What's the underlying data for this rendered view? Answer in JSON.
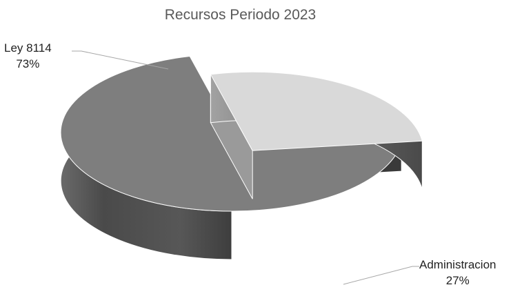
{
  "chart_data": {
    "type": "pie",
    "title": "Recursos Periodo 2023",
    "categories": [
      "Ley 8114",
      "Administracion"
    ],
    "values": [
      73,
      27
    ],
    "value_labels": [
      "73%",
      "27%"
    ],
    "exploded": "Administracion",
    "style": "3d",
    "legend": "none",
    "colors": {
      "Ley 8114": "#7e7e7e",
      "Administracion": "#d9d9d9",
      "side_dark": "#3a3a3a",
      "side_mid": "#5f5f5f",
      "leader_line": "#a6a6a6"
    }
  }
}
